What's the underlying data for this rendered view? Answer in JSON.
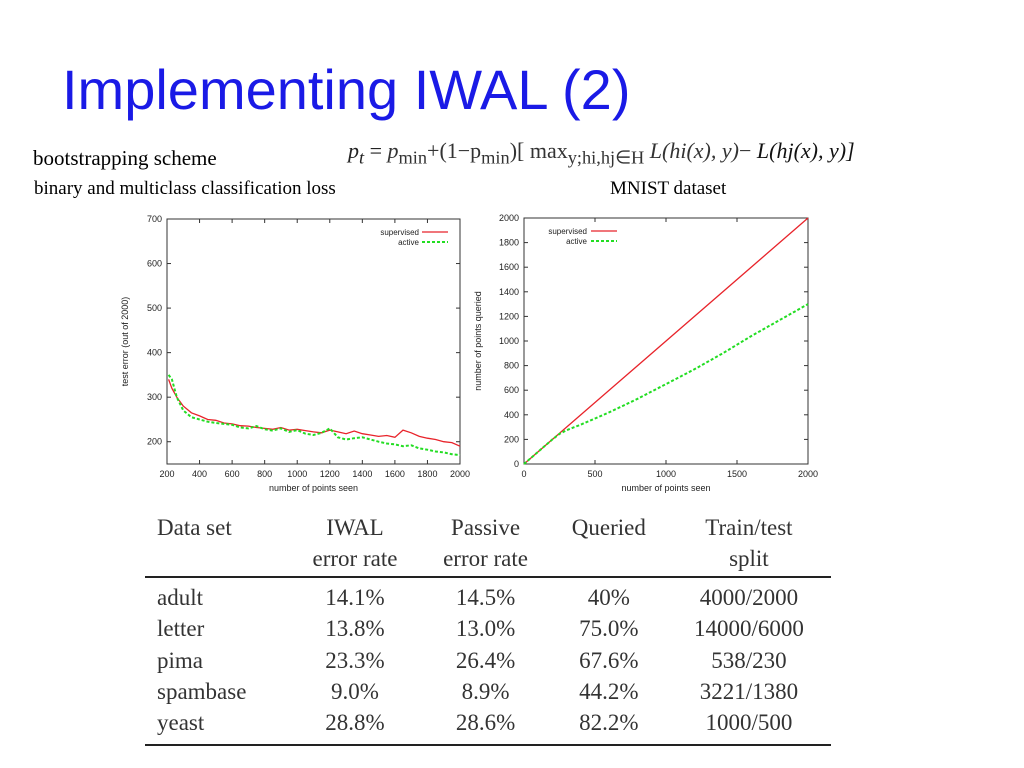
{
  "slide": {
    "title": "Implementing IWAL (2)",
    "subtitle_bootstrap": "bootstrapping scheme",
    "subtitle_loss": "binary and multiclass classification loss",
    "subtitle_dataset": "MNIST dataset",
    "formula": {
      "lhs": "p",
      "lhs_sub": "t",
      "eq": " = ",
      "rhs_pmin": "p",
      "rhs_pmin_sub": "min",
      "rhs_middle": "+(1−p",
      "rhs_middle_sub": "min",
      "rhs_bracket": ")[ max",
      "rhs_max_sub": "y;hi,hj∈H",
      "rhs_loss1": " L(hi(x), y)",
      "rhs_minus": "−",
      "rhs_loss2": " L(hj(x), y)]"
    }
  },
  "chart_data": [
    {
      "type": "line",
      "title": "",
      "xlabel": "number of points seen",
      "ylabel": "test error (out of 2000)",
      "xlim": [
        200,
        2000
      ],
      "ylim": [
        150,
        700
      ],
      "xticks": [
        200,
        400,
        600,
        800,
        1000,
        1200,
        1400,
        1600,
        1800,
        2000
      ],
      "yticks": [
        200,
        300,
        400,
        500,
        600,
        700
      ],
      "legend": "top-right",
      "series": [
        {
          "name": "supervised",
          "color": "#e8232a",
          "style": "solid",
          "x": [
            210,
            230,
            260,
            300,
            350,
            400,
            450,
            500,
            550,
            600,
            650,
            700,
            750,
            800,
            850,
            900,
            950,
            1000,
            1050,
            1100,
            1150,
            1200,
            1250,
            1300,
            1350,
            1400,
            1450,
            1500,
            1550,
            1600,
            1650,
            1700,
            1750,
            1800,
            1850,
            1900,
            1950,
            2000
          ],
          "y": [
            340,
            320,
            300,
            280,
            265,
            258,
            250,
            248,
            242,
            240,
            236,
            235,
            232,
            230,
            228,
            232,
            226,
            228,
            225,
            222,
            220,
            226,
            222,
            218,
            224,
            218,
            215,
            212,
            214,
            210,
            226,
            220,
            212,
            208,
            205,
            200,
            198,
            190
          ]
        },
        {
          "name": "active",
          "color": "#22dd22",
          "style": "dashed",
          "x": [
            210,
            230,
            260,
            300,
            350,
            400,
            450,
            500,
            550,
            600,
            650,
            700,
            750,
            800,
            850,
            900,
            950,
            1000,
            1050,
            1100,
            1150,
            1200,
            1250,
            1300,
            1350,
            1400,
            1450,
            1500,
            1550,
            1600,
            1650,
            1700,
            1750,
            1800,
            1850,
            1900,
            1950,
            2000
          ],
          "y": [
            350,
            340,
            300,
            270,
            255,
            250,
            245,
            242,
            240,
            238,
            232,
            230,
            235,
            228,
            225,
            230,
            222,
            226,
            218,
            215,
            220,
            230,
            210,
            205,
            208,
            210,
            205,
            200,
            196,
            194,
            190,
            192,
            185,
            182,
            178,
            176,
            172,
            170
          ]
        }
      ]
    },
    {
      "type": "line",
      "title": "",
      "xlabel": "number of points seen",
      "ylabel": "number of points queried",
      "xlim": [
        0,
        2000
      ],
      "ylim": [
        0,
        2000
      ],
      "xticks": [
        0,
        500,
        1000,
        1500,
        2000
      ],
      "yticks": [
        0,
        200,
        400,
        600,
        800,
        1000,
        1200,
        1400,
        1600,
        1800,
        2000
      ],
      "legend": "top-left",
      "series": [
        {
          "name": "supervised",
          "color": "#e8232a",
          "style": "solid",
          "x": [
            0,
            2000
          ],
          "y": [
            0,
            2000
          ]
        },
        {
          "name": "active",
          "color": "#22dd22",
          "style": "dashed",
          "x": [
            0,
            100,
            200,
            250,
            300,
            400,
            500,
            600,
            700,
            800,
            900,
            1000,
            1100,
            1200,
            1300,
            1400,
            1500,
            1600,
            1700,
            1800,
            1900,
            2000
          ],
          "y": [
            0,
            100,
            200,
            245,
            275,
            320,
            370,
            420,
            475,
            530,
            590,
            650,
            710,
            770,
            835,
            900,
            970,
            1040,
            1105,
            1170,
            1235,
            1300
          ]
        }
      ]
    }
  ],
  "table": {
    "headers": [
      {
        "line1": "Data set",
        "line2": ""
      },
      {
        "line1": "IWAL",
        "line2": "error rate"
      },
      {
        "line1": "Passive",
        "line2": "error rate"
      },
      {
        "line1": "Queried",
        "line2": ""
      },
      {
        "line1": "Train/test",
        "line2": "split"
      }
    ],
    "rows": [
      [
        "adult",
        "14.1%",
        "14.5%",
        "40%",
        "4000/2000"
      ],
      [
        "letter",
        "13.8%",
        "13.0%",
        "75.0%",
        "14000/6000"
      ],
      [
        "pima",
        "23.3%",
        "26.4%",
        "67.6%",
        "538/230"
      ],
      [
        "spambase",
        "9.0%",
        "8.9%",
        "44.2%",
        "3221/1380"
      ],
      [
        "yeast",
        "28.8%",
        "28.6%",
        "82.2%",
        "1000/500"
      ]
    ]
  }
}
